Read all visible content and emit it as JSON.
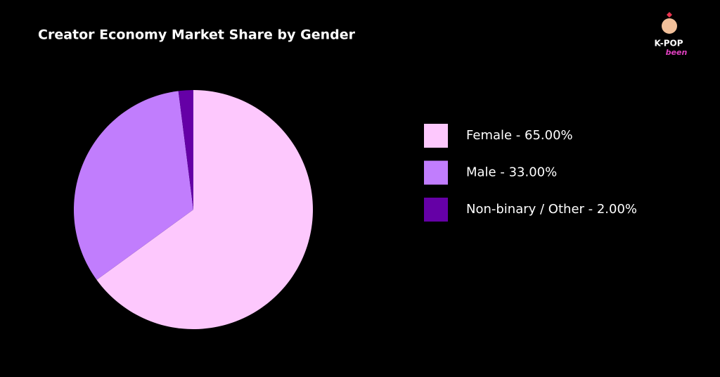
{
  "chart_data": {
    "type": "pie",
    "title": "Creator Economy Market Share by Gender",
    "categories": [
      "Female - 65.00%",
      "Male - 33.00%",
      "Non-binary / Other - 2.00%"
    ],
    "values": [
      65,
      33,
      2
    ],
    "colors": [
      "#fdc8fd",
      "#c17dfd",
      "#6500a6"
    ],
    "legend": "right"
  },
  "logo": {
    "top": "K-POP",
    "bottom": "been"
  }
}
